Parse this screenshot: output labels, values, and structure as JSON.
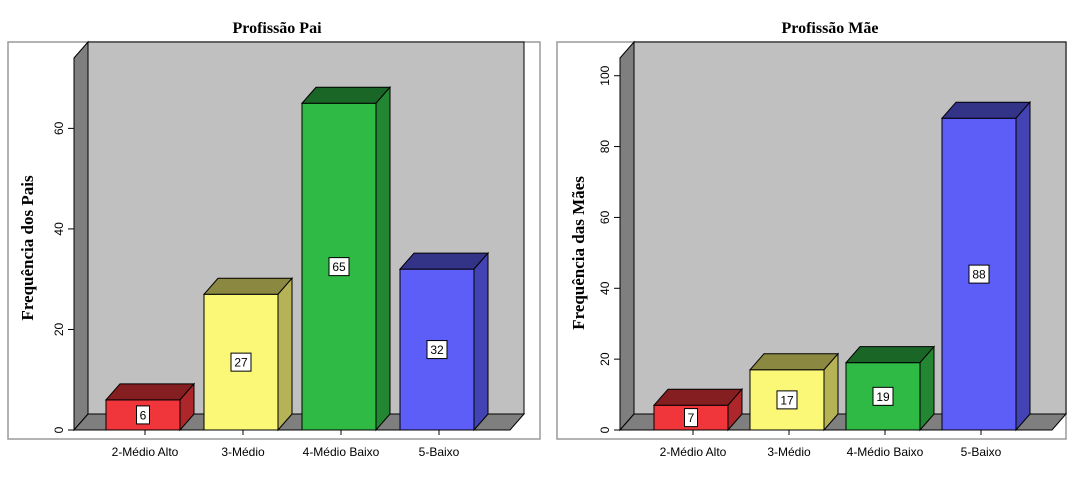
{
  "chart_data": [
    {
      "type": "bar",
      "title": "Profissão Pai",
      "ylabel": "Frequência dos Pais",
      "xlabel": "",
      "categories": [
        "2-Médio Alto",
        "3-Médio",
        "4-Médio Baixo",
        "5-Baixo"
      ],
      "values": [
        6,
        27,
        65,
        32
      ],
      "data_labels": [
        "6",
        "27",
        "65",
        "32"
      ],
      "yticks": [
        0,
        20,
        40,
        60
      ],
      "ytick_labels": [
        "0",
        "20",
        "40",
        "60"
      ],
      "ylim": [
        0,
        74
      ],
      "colors": [
        "#f0363a",
        "#fbf877",
        "#2fba45",
        "#5d5df8"
      ],
      "grid": false,
      "style": "3d"
    },
    {
      "type": "bar",
      "title": "Profissão Mãe",
      "ylabel": "Frequência das Mães",
      "xlabel": "",
      "categories": [
        "2-Médio Alto",
        "3-Médio",
        "4-Médio Baixo",
        "5-Baixo"
      ],
      "values": [
        7,
        17,
        19,
        88
      ],
      "data_labels": [
        "7",
        "17",
        "19",
        "88"
      ],
      "yticks": [
        0,
        20,
        40,
        60,
        80,
        100
      ],
      "ytick_labels": [
        "0",
        "20",
        "40",
        "60",
        "80",
        "100"
      ],
      "ylim": [
        0,
        105
      ],
      "colors": [
        "#f0363a",
        "#fbf877",
        "#2fba45",
        "#5d5df8"
      ],
      "grid": false,
      "style": "3d"
    }
  ]
}
